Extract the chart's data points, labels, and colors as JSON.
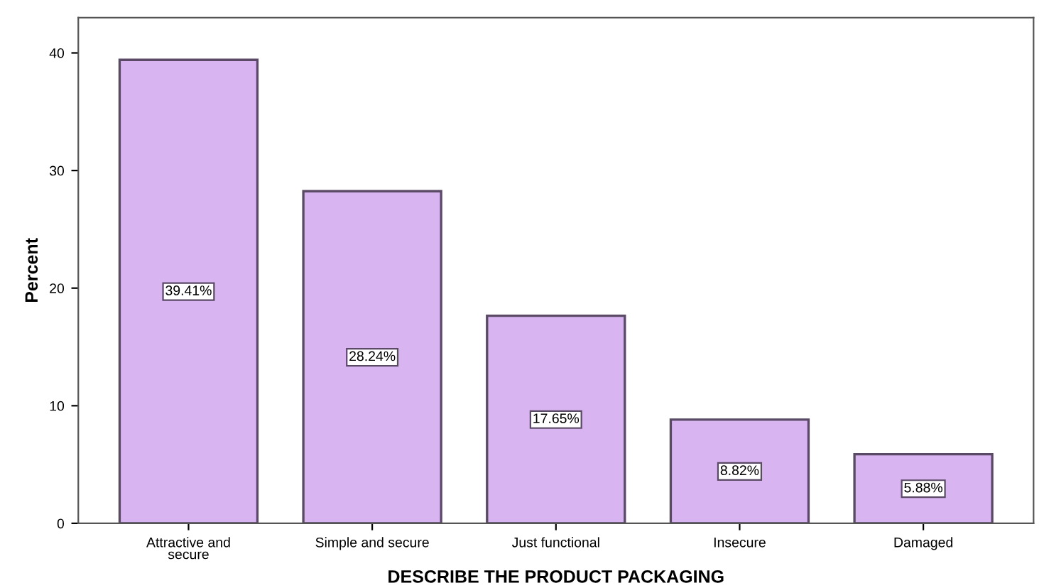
{
  "chart_data": {
    "type": "bar",
    "xlabel": "DESCRIBE THE PRODUCT PACKAGING",
    "ylabel": "Percent",
    "categories": [
      "Attractive and\nsecure",
      "Simple and secure",
      "Just functional",
      "Insecure",
      "Damaged"
    ],
    "values": [
      39.41,
      28.24,
      17.65,
      8.82,
      5.88
    ],
    "value_labels": [
      "39.41%",
      "28.24%",
      "17.65%",
      "8.82%",
      "5.88%"
    ],
    "color": "#d8b4f0",
    "ylim": [
      0,
      43
    ],
    "yticks": [
      0,
      10,
      20,
      30,
      40
    ],
    "grid": false
  }
}
